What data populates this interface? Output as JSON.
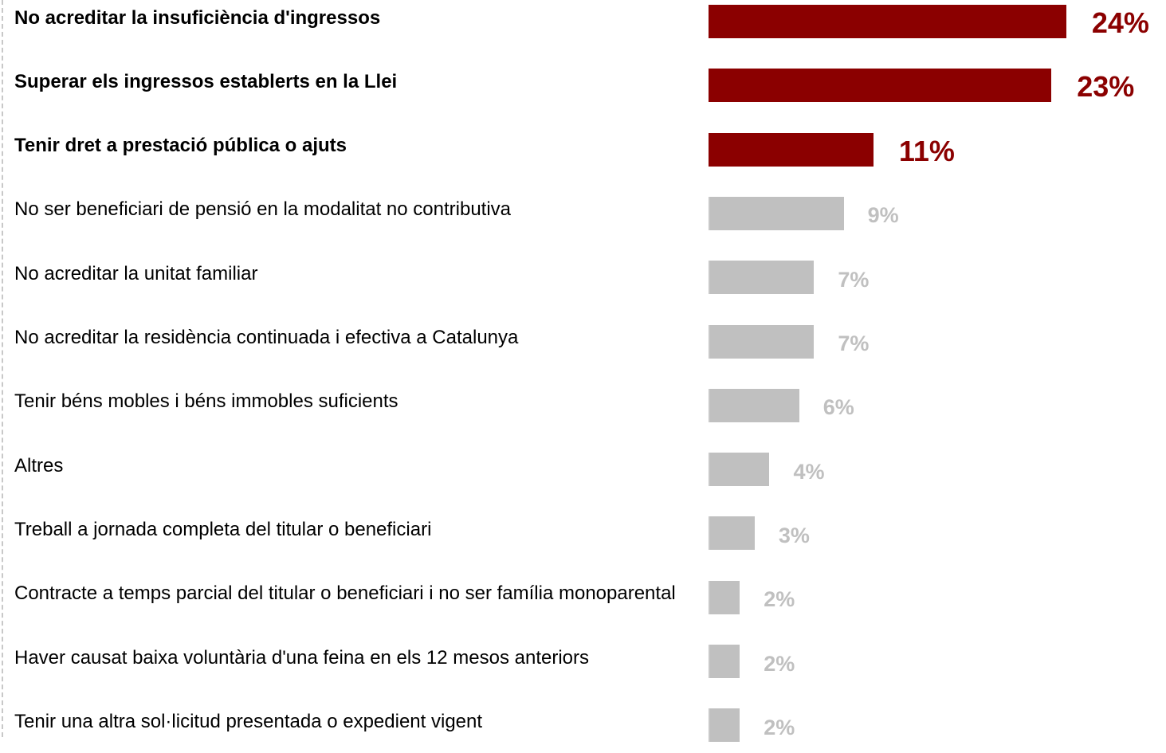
{
  "chart_data": {
    "type": "bar",
    "orientation": "horizontal",
    "categories": [
      "No acreditar la insuficiència d'ingressos",
      "Superar els ingressos establerts en la Llei",
      "Tenir dret a prestació pública o ajuts",
      "No ser beneficiari de pensió en la modalitat no contributiva",
      "No acreditar la unitat familiar",
      "No acreditar la residència continuada i efectiva a Catalunya",
      "Tenir béns mobles i béns immobles suficients",
      "Altres",
      "Treball a jornada completa del titular o beneficiari",
      "Contracte a temps parcial del titular o beneficiari i no ser família monoparental",
      "Haver causat baixa voluntària d'una feina en els 12 mesos anteriors",
      "Tenir una altra sol·licitud presentada o expedient vigent"
    ],
    "values": [
      24,
      23,
      11,
      9,
      7,
      7,
      6,
      4,
      3,
      2,
      2,
      2
    ],
    "value_labels": [
      "24%",
      "23%",
      "11%",
      "9%",
      "7%",
      "7%",
      "6%",
      "4%",
      "3%",
      "2%",
      "2%",
      "2%"
    ],
    "colors": [
      "#8b0000",
      "#8b0000",
      "#8b0000",
      "#c0c0c0",
      "#c0c0c0",
      "#c0c0c0",
      "#c0c0c0",
      "#c0c0c0",
      "#c0c0c0",
      "#c0c0c0",
      "#c0c0c0",
      "#c0c0c0"
    ]
  }
}
